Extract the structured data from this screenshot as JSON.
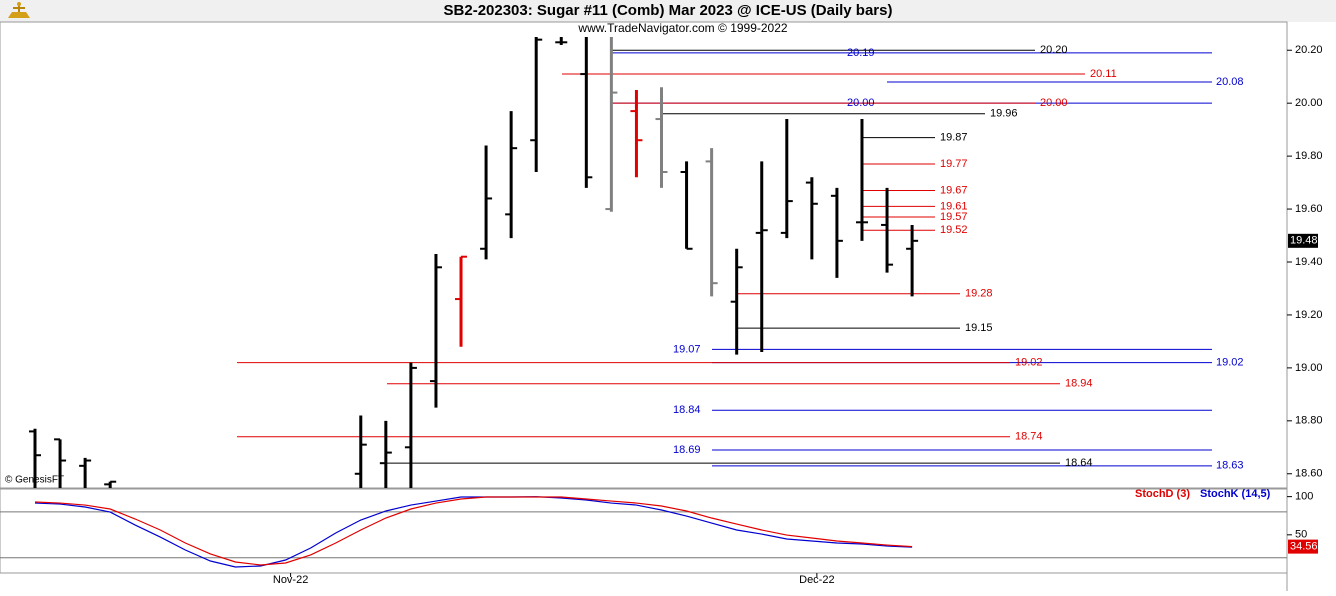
{
  "header": {
    "title": "SB2-202303:  Sugar #11 (Comb) Mar 2023 @ ICE-US  (Daily bars)",
    "subtitle": "www.TradeNavigator.com © 1999-2022",
    "credit": "© GenesisFT"
  },
  "chart_data": [
    {
      "type": "ohlc",
      "categories": [
        null,
        null,
        null,
        null,
        null,
        null,
        null,
        null,
        null,
        null,
        null,
        null,
        null,
        null,
        null,
        null,
        null,
        null,
        null,
        null,
        null,
        null,
        null,
        null,
        null,
        null,
        null,
        null,
        null,
        null,
        null,
        null,
        null,
        null,
        null,
        null
      ],
      "open": [
        18.76,
        18.73,
        18.63,
        18.56,
        null,
        null,
        null,
        null,
        null,
        null,
        null,
        null,
        null,
        18.6,
        18.64,
        18.7,
        18.95,
        19.26,
        19.45,
        19.58,
        19.86,
        20.23,
        20.11,
        19.6,
        19.97,
        19.94,
        19.74,
        19.78,
        19.25,
        19.51,
        19.51,
        19.7,
        19.65,
        19.55,
        19.54,
        19.45
      ],
      "high": [
        18.77,
        18.73,
        18.66,
        18.57,
        null,
        null,
        null,
        null,
        null,
        null,
        null,
        null,
        null,
        18.82,
        18.8,
        19.02,
        19.43,
        19.42,
        19.84,
        19.97,
        20.3,
        20.25,
        20.3,
        20.3,
        20.05,
        20.06,
        19.78,
        19.83,
        19.45,
        19.78,
        19.94,
        19.72,
        19.68,
        19.94,
        19.68,
        19.54
      ],
      "low": [
        18.5,
        18.5,
        18.5,
        18.5,
        null,
        null,
        null,
        null,
        null,
        null,
        null,
        null,
        null,
        18.5,
        18.5,
        18.5,
        18.85,
        19.08,
        19.41,
        19.49,
        19.74,
        20.22,
        19.68,
        19.59,
        19.72,
        19.68,
        19.45,
        19.27,
        19.05,
        19.06,
        19.49,
        19.41,
        19.34,
        19.48,
        19.36,
        19.27
      ],
      "close": [
        18.67,
        18.65,
        18.65,
        18.57,
        null,
        null,
        null,
        null,
        null,
        null,
        null,
        null,
        null,
        18.71,
        18.68,
        19.0,
        19.38,
        19.42,
        19.64,
        19.83,
        20.24,
        20.23,
        19.72,
        20.04,
        19.86,
        19.74,
        19.45,
        19.32,
        19.38,
        19.52,
        19.63,
        19.62,
        19.48,
        19.55,
        19.39,
        19.48
      ],
      "colors": [
        "#000000",
        "#000000",
        "#000000",
        "#000000",
        null,
        null,
        null,
        null,
        null,
        null,
        null,
        null,
        null,
        "#000000",
        "#000000",
        "#000000",
        "#000000",
        "#e00000",
        "#000000",
        "#000000",
        "#000000",
        "#000000",
        "#000000",
        "#808080",
        "#e00000",
        "#808080",
        "#000000",
        "#808080",
        "#000000",
        "#000000",
        "#000000",
        "#000000",
        "#000000",
        "#000000",
        "#000000",
        "#000000"
      ],
      "ylim": [
        18.55,
        20.25
      ],
      "yticks": [
        {
          "value": 18.6,
          "label": "18.60"
        },
        {
          "value": 18.8,
          "label": "18.80"
        },
        {
          "value": 19.0,
          "label": "19.00"
        },
        {
          "value": 19.2,
          "label": "19.20"
        },
        {
          "value": 19.4,
          "label": "19.40"
        },
        {
          "value": 19.6,
          "label": "19.60"
        },
        {
          "value": 19.8,
          "label": "19.80"
        },
        {
          "value": 20.0,
          "label": "20.00"
        },
        {
          "value": 20.2,
          "label": "20.20"
        }
      ],
      "xticks": [
        {
          "value": 10.2,
          "label": "Nov-22"
        },
        {
          "value": 31.2,
          "label": "Dec-22"
        }
      ],
      "levels": [
        {
          "value": 20.2,
          "label": "20.20",
          "color": "#000000"
        },
        {
          "value": 20.19,
          "label": "20.19",
          "color": "#0000d0"
        },
        {
          "value": 20.11,
          "label": "20.11",
          "color": "#e00000"
        },
        {
          "value": 20.08,
          "label": "20.08",
          "color": "#0000d0"
        },
        {
          "value": 20.0,
          "label": "20.00",
          "color": "#0000d0"
        },
        {
          "value": 20.0,
          "label": "20.00",
          "color": "#e00000"
        },
        {
          "value": 19.96,
          "label": "19.96",
          "color": "#000000"
        },
        {
          "value": 19.87,
          "label": "19.87",
          "color": "#000000"
        },
        {
          "value": 19.77,
          "label": "19.77",
          "color": "#e00000"
        },
        {
          "value": 19.67,
          "label": "19.67",
          "color": "#e00000"
        },
        {
          "value": 19.61,
          "label": "19.61",
          "color": "#e00000"
        },
        {
          "value": 19.57,
          "label": "19.57",
          "color": "#e00000"
        },
        {
          "value": 19.52,
          "label": "19.52",
          "color": "#e00000"
        },
        {
          "value": 19.28,
          "label": "19.28",
          "color": "#e00000"
        },
        {
          "value": 19.15,
          "label": "19.15",
          "color": "#000000"
        },
        {
          "value": 19.07,
          "label": "19.07",
          "color": "#0000d0"
        },
        {
          "value": 19.02,
          "label": "19.02",
          "color": "#0000d0"
        },
        {
          "value": 19.02,
          "label": "19.02",
          "color": "#e00000"
        },
        {
          "value": 18.94,
          "label": "18.94",
          "color": "#e00000"
        },
        {
          "value": 18.84,
          "label": "18.84",
          "color": "#0000d0"
        },
        {
          "value": 18.74,
          "label": "18.74",
          "color": "#e00000"
        },
        {
          "value": 18.69,
          "label": "18.69",
          "color": "#0000d0"
        },
        {
          "value": 18.64,
          "label": "18.64",
          "color": "#000000"
        },
        {
          "value": 18.63,
          "label": "18.63",
          "color": "#0000d0"
        }
      ]
    },
    {
      "type": "line",
      "series": [
        {
          "name": "StochD (3)",
          "color": "#e00000",
          "values": [
            93,
            91.6,
            89,
            83.8,
            70.7,
            56.3,
            39.3,
            24.9,
            14.4,
            10.5,
            13.1,
            23.6,
            39.3,
            56.3,
            72,
            83.8,
            91.6,
            96.9,
            99.5,
            99.5,
            99.5,
            99.5,
            96.9,
            94.2,
            91.6,
            87.7,
            81.2,
            72,
            64.1,
            56.3,
            49.7,
            45.8,
            41.9,
            39.3,
            36.6,
            34.56
          ]
        },
        {
          "name": "StochK (14,5)",
          "color": "#0000d0",
          "values": [
            91.6,
            90.3,
            86.4,
            79.8,
            62.8,
            47.1,
            30.1,
            15.7,
            7.9,
            9.2,
            17,
            32.7,
            52.4,
            69.4,
            81.2,
            89,
            94.2,
            99.5,
            99.5,
            99.5,
            99.9,
            98.2,
            95.6,
            91.6,
            89,
            82.5,
            74.6,
            65.4,
            56.3,
            51,
            44.5,
            41.9,
            39.3,
            38,
            35.3,
            33.9
          ]
        }
      ],
      "ylim": [
        0,
        110
      ],
      "yticks": [
        100,
        50
      ],
      "grid_levels": [
        80,
        20
      ]
    }
  ]
}
